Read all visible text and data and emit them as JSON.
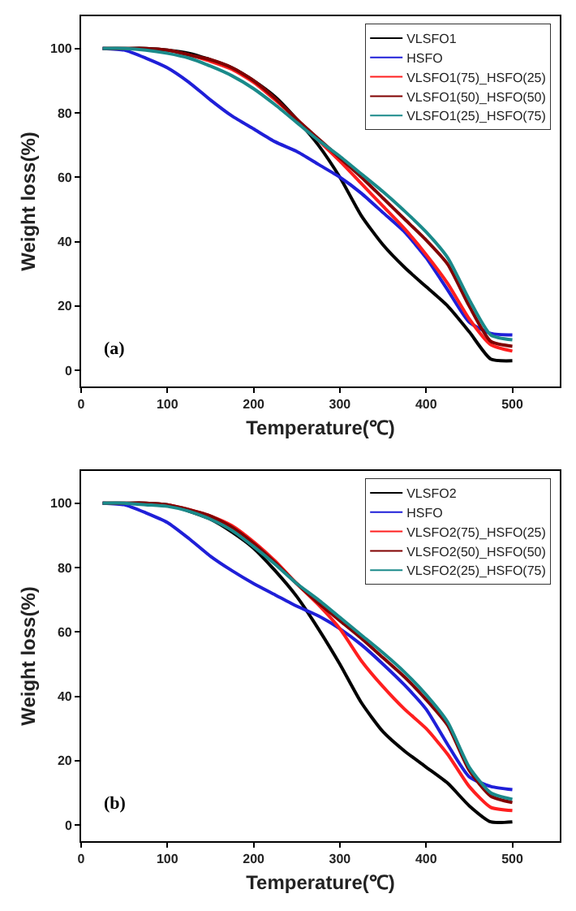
{
  "chart_data": [
    {
      "type": "line",
      "xlabel": "Temperature(℃)",
      "ylabel": "Weight loss(%)",
      "annotations": [
        "(a)"
      ],
      "x": [
        25,
        50,
        75,
        100,
        125,
        150,
        175,
        200,
        225,
        250,
        275,
        300,
        325,
        350,
        375,
        400,
        425,
        450,
        475,
        500
      ],
      "xlim": [
        0,
        555
      ],
      "xticks": [
        0,
        100,
        200,
        300,
        400,
        500
      ],
      "ylim": [
        -5,
        110
      ],
      "yticks": [
        0,
        20,
        40,
        60,
        80,
        100
      ],
      "grid": false,
      "legend": "top right",
      "marker": "none",
      "line_style": "solid",
      "series": [
        {
          "name": "VLSFO1",
          "color": "#000000",
          "values": [
            100,
            100,
            100,
            99.5,
            98.5,
            96.5,
            94,
            90,
            85,
            78,
            70,
            60,
            48,
            39,
            32,
            26,
            20,
            12,
            3.5,
            3
          ]
        },
        {
          "name": "HSFO",
          "color": "#1f1fd8",
          "values": [
            100,
            99.5,
            97,
            94,
            89.5,
            84,
            79,
            75,
            71,
            68,
            64,
            60,
            55,
            49,
            43,
            35,
            25,
            15,
            11.5,
            11
          ]
        },
        {
          "name": "VLSFO1(75)_HSFO(25)",
          "color": "#ff1f1f",
          "values": [
            null,
            null,
            null,
            99.5,
            98,
            96,
            93.5,
            89.5,
            84,
            78,
            71.5,
            65,
            58,
            51,
            44,
            36,
            27,
            16,
            8,
            6
          ]
        },
        {
          "name": "VLSFO1(50)_HSFO(50)",
          "color": "#800000",
          "values": [
            100,
            100,
            100,
            99.5,
            98,
            96.5,
            94,
            90,
            84.5,
            78,
            72,
            66,
            60,
            53.5,
            47,
            40.5,
            33,
            20,
            9,
            7.5
          ]
        },
        {
          "name": "VLSFO1(25)_HSFO(75)",
          "color": "#1a8a8a",
          "values": [
            100,
            100,
            99.5,
            98.5,
            97,
            94.5,
            91.5,
            87.5,
            82.5,
            77,
            71.5,
            66.5,
            61,
            55.5,
            49.5,
            43,
            35,
            22,
            11,
            9.5
          ]
        }
      ]
    },
    {
      "type": "line",
      "xlabel": "Temperature(℃)",
      "ylabel": "Weight loss(%)",
      "annotations": [
        "(b)"
      ],
      "x": [
        25,
        50,
        75,
        100,
        125,
        150,
        175,
        200,
        225,
        250,
        275,
        300,
        325,
        350,
        375,
        400,
        425,
        450,
        475,
        500
      ],
      "xlim": [
        0,
        555
      ],
      "xticks": [
        0,
        100,
        200,
        300,
        400,
        500
      ],
      "ylim": [
        -5,
        110
      ],
      "yticks": [
        0,
        20,
        40,
        60,
        80,
        100
      ],
      "grid": false,
      "legend": "top right",
      "marker": "none",
      "line_style": "solid",
      "series": [
        {
          "name": "VLSFO2",
          "color": "#000000",
          "values": [
            100,
            100,
            100,
            99.5,
            97.5,
            95,
            91,
            86,
            79,
            71,
            61,
            50,
            38,
            29,
            23,
            18,
            13,
            6,
            1,
            1
          ]
        },
        {
          "name": "HSFO",
          "color": "#1f1fd8",
          "values": [
            100,
            99.5,
            97,
            94,
            89,
            83.5,
            79,
            75,
            71.5,
            68,
            65,
            61,
            56,
            50,
            43.5,
            36,
            25,
            15,
            12,
            11
          ]
        },
        {
          "name": "VLSFO2(75)_HSFO(25)",
          "color": "#ff1f1f",
          "values": [
            null,
            null,
            null,
            99.5,
            98,
            96,
            93,
            88,
            82,
            75,
            68.5,
            61,
            51,
            43,
            36,
            30,
            22,
            12,
            5.5,
            4.5
          ]
        },
        {
          "name": "VLSFO2(50)_HSFO(50)",
          "color": "#800000",
          "values": [
            100,
            100,
            100,
            99.5,
            98,
            96,
            92.5,
            87.5,
            81.5,
            75,
            69,
            63.5,
            58,
            52,
            46,
            39,
            31,
            17,
            9,
            7
          ]
        },
        {
          "name": "VLSFO2(25)_HSFO(75)",
          "color": "#1a8a8a",
          "values": [
            100,
            100,
            99.5,
            99,
            97.5,
            95,
            91.5,
            86.5,
            81,
            75,
            70,
            64.5,
            59,
            53.5,
            47.5,
            40.5,
            32,
            18,
            10,
            8
          ]
        }
      ]
    }
  ]
}
